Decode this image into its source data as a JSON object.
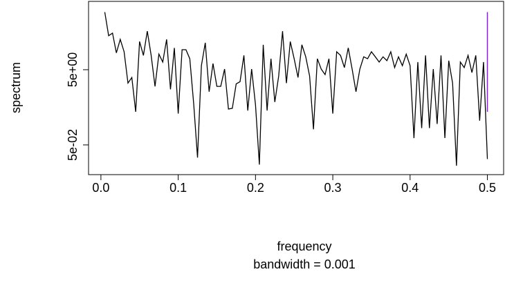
{
  "chart_data": {
    "type": "line",
    "xlabel": "frequency",
    "subtitle": "bandwidth = 0.001",
    "ylabel": "spectrum",
    "log_y": true,
    "color": "#000000",
    "ci_color": "#7d26cd",
    "x": [
      0.005,
      0.01,
      0.015,
      0.02,
      0.025,
      0.03,
      0.035,
      0.04,
      0.045,
      0.05,
      0.055,
      0.06,
      0.065,
      0.07,
      0.075,
      0.08,
      0.085,
      0.09,
      0.095,
      0.1,
      0.105,
      0.11,
      0.115,
      0.12,
      0.125,
      0.13,
      0.135,
      0.14,
      0.145,
      0.15,
      0.155,
      0.16,
      0.165,
      0.17,
      0.175,
      0.18,
      0.185,
      0.19,
      0.195,
      0.2,
      0.205,
      0.21,
      0.215,
      0.22,
      0.225,
      0.23,
      0.235,
      0.24,
      0.245,
      0.25,
      0.255,
      0.26,
      0.265,
      0.27,
      0.275,
      0.28,
      0.285,
      0.29,
      0.295,
      0.3,
      0.305,
      0.31,
      0.315,
      0.32,
      0.325,
      0.33,
      0.335,
      0.34,
      0.345,
      0.35,
      0.355,
      0.36,
      0.365,
      0.37,
      0.375,
      0.38,
      0.385,
      0.39,
      0.395,
      0.4,
      0.405,
      0.41,
      0.415,
      0.42,
      0.425,
      0.43,
      0.435,
      0.44,
      0.445,
      0.45,
      0.455,
      0.46,
      0.465,
      0.47,
      0.475,
      0.48,
      0.485,
      0.49,
      0.495,
      0.5
    ],
    "values": [
      170,
      40,
      47,
      14,
      32,
      15,
      2.2,
      3.1,
      0.38,
      28,
      12,
      53,
      12,
      1.8,
      13,
      8,
      32,
      1.5,
      19,
      0.34,
      17,
      17,
      9.8,
      0.63,
      0.023,
      6.4,
      26,
      1.3,
      7.3,
      1.8,
      1.8,
      5.2,
      0.45,
      0.47,
      2.1,
      2.4,
      12,
      0.41,
      5.2,
      0.58,
      0.015,
      23,
      0.41,
      9.8,
      0.69,
      3.4,
      53,
      2.2,
      28,
      9.8,
      3.1,
      23,
      11,
      3.4,
      0.13,
      9.8,
      5.2,
      3.7,
      9.8,
      0.34,
      15,
      12,
      5.7,
      19,
      5.2,
      1.3,
      5.2,
      11,
      9.8,
      15,
      11,
      8,
      11,
      8.7,
      15,
      5.7,
      11,
      6.4,
      13,
      6.4,
      0.076,
      8,
      0.14,
      12,
      0.14,
      5.2,
      0.18,
      12,
      0.076,
      8.7,
      2.2,
      0.014,
      8,
      5.7,
      12,
      4.2,
      12,
      0.22,
      8,
      0.021
    ],
    "ci": [
      0.38,
      170
    ],
    "xlim": [
      -0.016,
      0.521
    ],
    "xticks": [
      {
        "value": 0,
        "label": "0.0"
      },
      0.1,
      0.2,
      0.3,
      0.4,
      0.5
    ],
    "ylim": [
      0.0081,
      328
    ],
    "yticks": [
      {
        "value": 0.05,
        "label": "5e-02"
      },
      {
        "value": 5,
        "label": "5e+00"
      }
    ]
  }
}
